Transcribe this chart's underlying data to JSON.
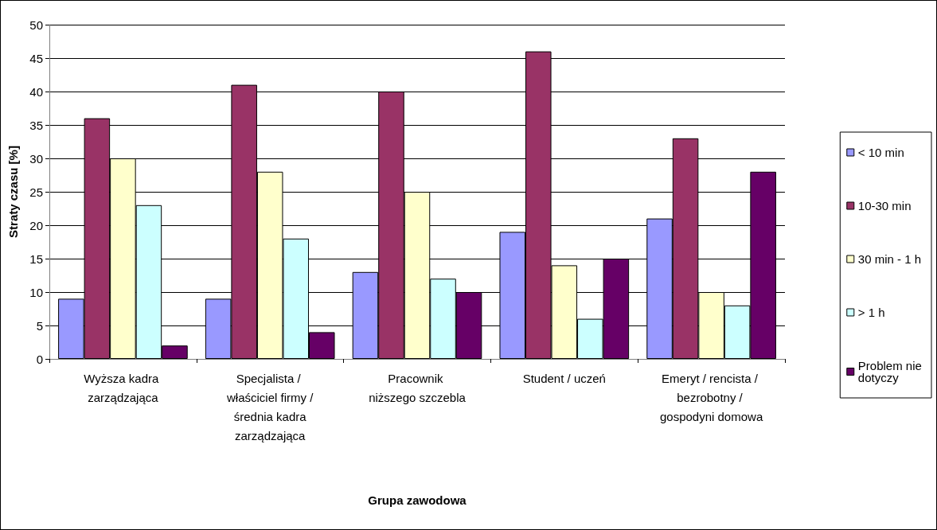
{
  "chart_data": {
    "type": "bar",
    "xlabel": "Grupa zawodowa",
    "ylabel": "Straty czasu [%]",
    "categories": [
      "Wyższa kadra zarządzająca",
      "Specjalista / właściciel firmy / średnia kadra zarządzająca",
      "Pracownik niższego szczebla",
      "Student / uczeń",
      "Emeryt / rencista / bezrobotny / gospodyni domowa"
    ],
    "series": [
      {
        "name": "< 10 min",
        "color": "#9999ff",
        "values": [
          9,
          9,
          13,
          19,
          21
        ]
      },
      {
        "name": "10-30 min",
        "color": "#993366",
        "values": [
          36,
          41,
          40,
          46,
          33
        ]
      },
      {
        "name": "30 min - 1 h",
        "color": "#ffffcc",
        "values": [
          30,
          28,
          25,
          14,
          10
        ]
      },
      {
        "name": "> 1 h",
        "color": "#ccffff",
        "values": [
          23,
          18,
          12,
          6,
          8
        ]
      },
      {
        "name": "Problem nie dotyczy",
        "color": "#660066",
        "values": [
          2,
          4,
          10,
          15,
          28
        ]
      }
    ],
    "ylim": [
      0,
      50
    ],
    "yticks": [
      0,
      5,
      10,
      15,
      20,
      25,
      30,
      35,
      40,
      45,
      50
    ],
    "grid": "y",
    "legend": "right"
  }
}
